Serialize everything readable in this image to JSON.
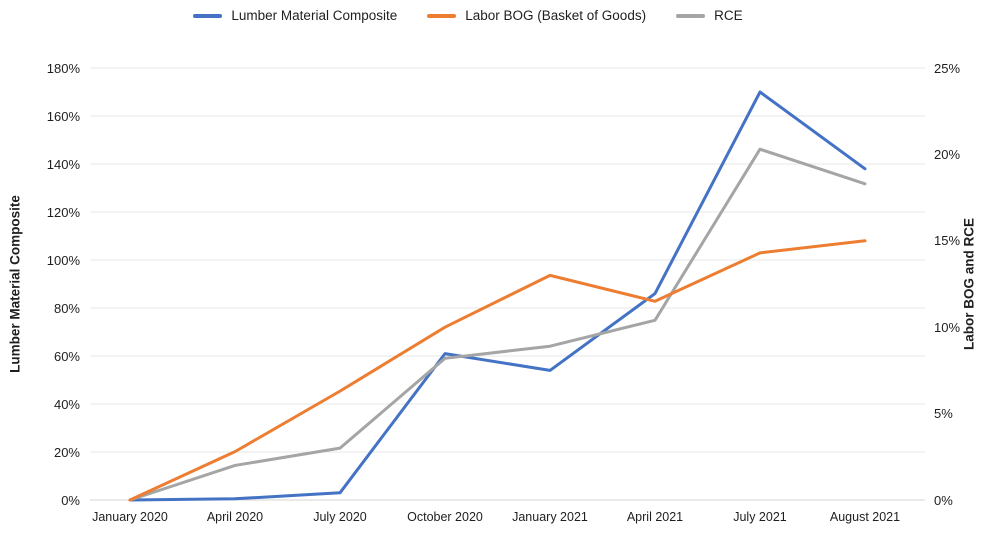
{
  "chart_data": {
    "type": "line",
    "categories": [
      "January 2020",
      "April 2020",
      "July 2020",
      "October 2020",
      "January 2021",
      "April 2021",
      "July 2021",
      "August 2021"
    ],
    "series": [
      {
        "name": "Lumber Material Composite",
        "axis": "left",
        "color": "#4472C4",
        "values": [
          0,
          0.5,
          3,
          61,
          54,
          86,
          170,
          138
        ]
      },
      {
        "name": "Labor BOG (Basket of Goods)",
        "axis": "right",
        "color": "#ED7D31",
        "values": [
          0,
          2.8,
          6.3,
          10,
          13,
          11.5,
          14.3,
          15
        ]
      },
      {
        "name": "RCE",
        "axis": "right",
        "color": "#A5A5A5",
        "values": [
          0,
          2,
          3,
          8.2,
          8.9,
          10.4,
          20.3,
          18.3
        ]
      }
    ],
    "left_axis": {
      "title": "Lumber Material Composite",
      "min": 0,
      "max": 180,
      "ticks": [
        {
          "v": 0,
          "label": "0%"
        },
        {
          "v": 20,
          "label": "20%"
        },
        {
          "v": 40,
          "label": "40%"
        },
        {
          "v": 60,
          "label": "60%"
        },
        {
          "v": 80,
          "label": "80%"
        },
        {
          "v": 100,
          "label": "100%"
        },
        {
          "v": 120,
          "label": "120%"
        },
        {
          "v": 140,
          "label": "140%"
        },
        {
          "v": 160,
          "label": "160%"
        },
        {
          "v": 180,
          "label": "180%"
        }
      ]
    },
    "right_axis": {
      "title": "Labor BOG and RCE",
      "min": 0,
      "max": 25,
      "ticks": [
        {
          "v": 0,
          "label": "0%"
        },
        {
          "v": 5,
          "label": "5%"
        },
        {
          "v": 10,
          "label": "10%"
        },
        {
          "v": 15,
          "label": "15%"
        },
        {
          "v": 20,
          "label": "20%"
        },
        {
          "v": 25,
          "label": "25%"
        }
      ]
    },
    "grid": true,
    "legend_position": "top"
  },
  "colors": {
    "grid": "#E7E7E7",
    "baseline": "#D6D6D6",
    "text": "#1F1F1F"
  }
}
